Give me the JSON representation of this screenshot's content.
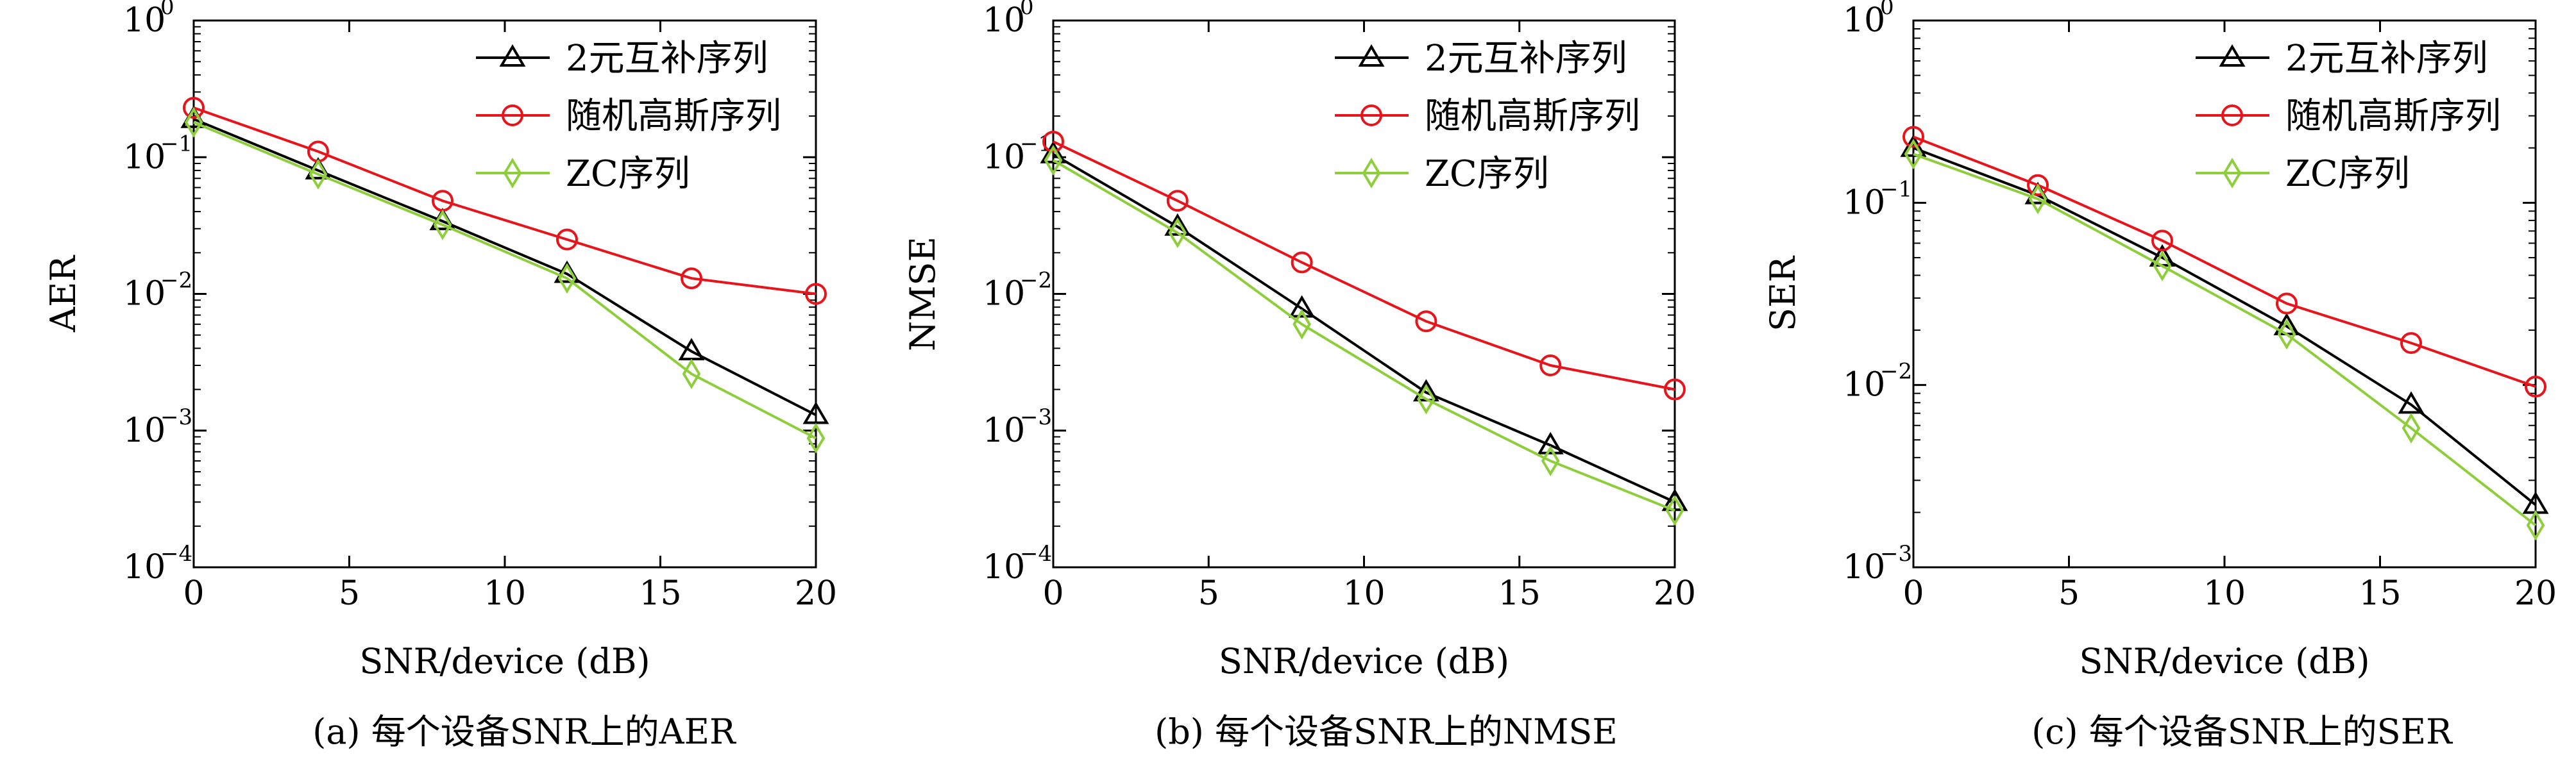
{
  "figure": {
    "legend_entries": [
      "2元互补序列",
      "随机高斯序列",
      "ZC序列"
    ],
    "colors": {
      "binary": "#000000",
      "gaussian": "#e8141b",
      "zc": "#8dce3a"
    }
  },
  "chart_data": [
    {
      "type": "line",
      "subplot_label": "(a)",
      "caption": "(a) 每个设备SNR上的AER",
      "xlabel": "SNR/device (dB)",
      "ylabel": "AER",
      "y_scale": "log",
      "xlim": [
        0,
        20
      ],
      "ylim": [
        0.0001,
        1
      ],
      "x_ticks": [
        0,
        5,
        10,
        15,
        20
      ],
      "y_ticks": [
        {
          "base": "10",
          "exp": "0"
        },
        {
          "base": "10",
          "exp": "−1"
        },
        {
          "base": "10",
          "exp": "−2"
        },
        {
          "base": "10",
          "exp": "−3"
        },
        {
          "base": "10",
          "exp": "−4"
        }
      ],
      "grid": false,
      "legend": "top-right",
      "x": [
        0,
        4,
        8,
        12,
        16,
        20
      ],
      "series": [
        {
          "name": "2元互补序列",
          "marker": "triangle",
          "color": "#000000",
          "values": [
            0.19,
            0.08,
            0.034,
            0.014,
            0.0038,
            0.0013
          ]
        },
        {
          "name": "随机高斯序列",
          "marker": "circle",
          "color": "#e8141b",
          "values": [
            0.23,
            0.11,
            0.048,
            0.025,
            0.013,
            0.01
          ]
        },
        {
          "name": "ZC序列",
          "marker": "diamond",
          "color": "#8dce3a",
          "values": [
            0.18,
            0.075,
            0.032,
            0.013,
            0.0026,
            0.00088
          ]
        }
      ]
    },
    {
      "type": "line",
      "subplot_label": "(b)",
      "caption": "(b) 每个设备SNR上的NMSE",
      "xlabel": "SNR/device (dB)",
      "ylabel": "NMSE",
      "y_scale": "log",
      "xlim": [
        0,
        20
      ],
      "ylim": [
        0.0001,
        1
      ],
      "x_ticks": [
        0,
        5,
        10,
        15,
        20
      ],
      "y_ticks": [
        {
          "base": "10",
          "exp": "0"
        },
        {
          "base": "10",
          "exp": "−1"
        },
        {
          "base": "10",
          "exp": "−2"
        },
        {
          "base": "10",
          "exp": "−3"
        },
        {
          "base": "10",
          "exp": "−4"
        }
      ],
      "grid": false,
      "legend": "top-right",
      "x": [
        0,
        4,
        8,
        12,
        16,
        20
      ],
      "series": [
        {
          "name": "2元互补序列",
          "marker": "triangle",
          "color": "#000000",
          "values": [
            0.105,
            0.031,
            0.0078,
            0.0019,
            0.00078,
            0.0003
          ]
        },
        {
          "name": "随机高斯序列",
          "marker": "circle",
          "color": "#e8141b",
          "values": [
            0.13,
            0.048,
            0.017,
            0.0063,
            0.003,
            0.002
          ]
        },
        {
          "name": "ZC序列",
          "marker": "diamond",
          "color": "#8dce3a",
          "values": [
            0.095,
            0.028,
            0.006,
            0.0017,
            0.0006,
            0.00026
          ]
        }
      ]
    },
    {
      "type": "line",
      "subplot_label": "(c)",
      "caption": "(c) 每个设备SNR上的SER",
      "xlabel": "SNR/device (dB)",
      "ylabel": "SER",
      "y_scale": "log",
      "xlim": [
        0,
        20
      ],
      "ylim": [
        0.001,
        1
      ],
      "x_ticks": [
        0,
        5,
        10,
        15,
        20
      ],
      "y_ticks": [
        {
          "base": "10",
          "exp": "0"
        },
        {
          "base": "10",
          "exp": "−1"
        },
        {
          "base": "10",
          "exp": "−2"
        },
        {
          "base": "10",
          "exp": "−3"
        }
      ],
      "grid": false,
      "legend": "top-right",
      "x": [
        0,
        4,
        8,
        12,
        16,
        20
      ],
      "series": [
        {
          "name": "2元互补序列",
          "marker": "triangle",
          "color": "#000000",
          "values": [
            0.2,
            0.11,
            0.05,
            0.021,
            0.0078,
            0.0022
          ]
        },
        {
          "name": "随机高斯序列",
          "marker": "circle",
          "color": "#e8141b",
          "values": [
            0.23,
            0.125,
            0.062,
            0.028,
            0.017,
            0.0098
          ]
        },
        {
          "name": "ZC序列",
          "marker": "diamond",
          "color": "#8dce3a",
          "values": [
            0.185,
            0.105,
            0.045,
            0.019,
            0.0058,
            0.0017
          ]
        }
      ]
    }
  ]
}
